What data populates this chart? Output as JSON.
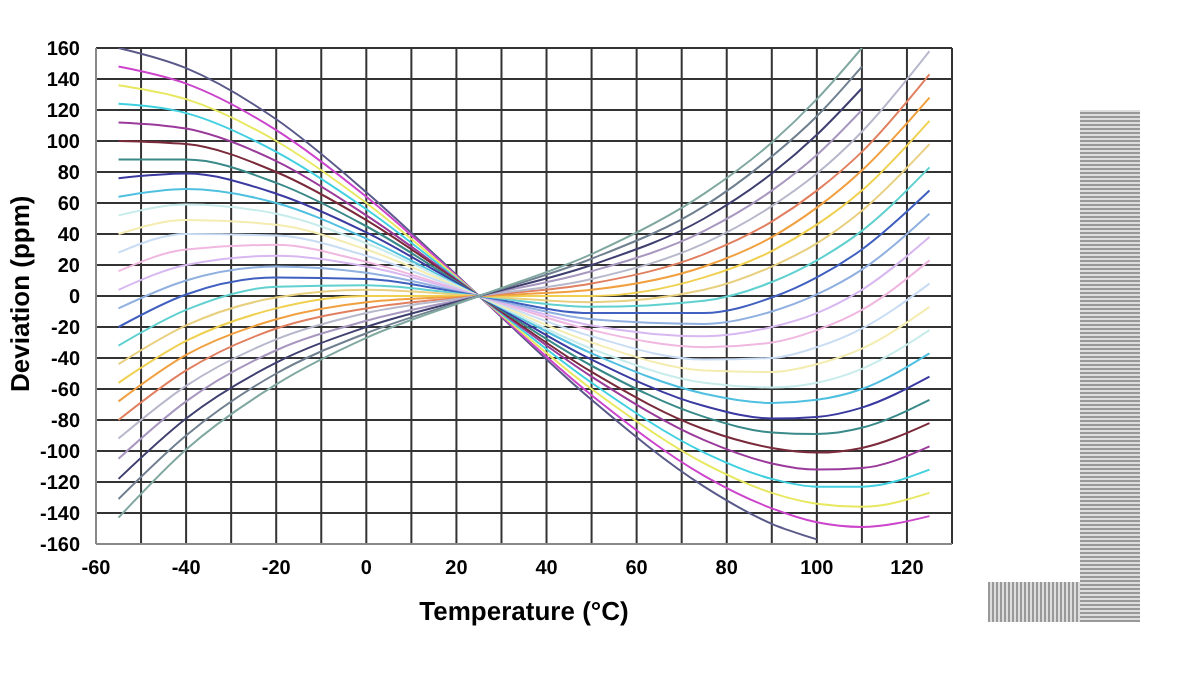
{
  "chart_data": {
    "type": "line",
    "xlabel": "Temperature (°C)",
    "ylabel": "Deviation (ppm)",
    "xlim": [
      -60,
      130
    ],
    "ylim": [
      -160,
      160
    ],
    "xticks": [
      -60,
      {
        "value": -50,
        "label": null
      },
      -40,
      {
        "value": -30,
        "label": null
      },
      -20,
      {
        "value": -10,
        "label": null
      },
      0,
      {
        "value": 10,
        "label": null
      },
      20,
      {
        "value": 30,
        "label": null
      },
      40,
      {
        "value": 50,
        "label": null
      },
      60,
      {
        "value": 70,
        "label": null
      },
      80,
      {
        "value": 90,
        "label": null
      },
      100,
      {
        "value": 110,
        "label": null
      },
      120,
      {
        "value": 130,
        "label": null
      }
    ],
    "yticks": [
      -160,
      -140,
      -120,
      -100,
      -80,
      -60,
      -40,
      -20,
      0,
      20,
      40,
      60,
      80,
      100,
      120,
      140,
      160
    ],
    "grid": true,
    "legend": false,
    "marker": "none",
    "line_style": "solid",
    "x": [
      -55,
      -40,
      -20,
      0,
      25,
      50,
      75,
      90,
      100,
      110,
      125
    ],
    "series": [
      {
        "color": "#5a5a8a",
        "values": [
          160,
          147,
          114,
          67,
          0,
          -67,
          -123,
          -147,
          -157,
          null,
          null
        ]
      },
      {
        "color": "#cc44cc",
        "values": [
          148,
          137,
          107,
          64,
          0,
          -64,
          -116,
          -137,
          -146,
          -149,
          -142
        ]
      },
      {
        "color": "#e8e860",
        "values": [
          136,
          127,
          100,
          60,
          0,
          -60,
          -108,
          -127,
          -134,
          -136,
          -127
        ]
      },
      {
        "color": "#40d0e0",
        "values": [
          124,
          118,
          93,
          56,
          0,
          -56,
          -101,
          -118,
          -123,
          -123,
          -112
        ]
      },
      {
        "color": "#9a3a9a",
        "values": [
          112,
          108,
          87,
          52,
          0,
          -52,
          -93,
          -108,
          -112,
          -111,
          -97
        ]
      },
      {
        "color": "#7a2a3a",
        "values": [
          100,
          98,
          80,
          49,
          0,
          -49,
          -86,
          -98,
          -101,
          -98,
          -82
        ]
      },
      {
        "color": "#3a8a8a",
        "values": [
          88,
          88,
          73,
          45,
          0,
          -45,
          -78,
          -88,
          -89,
          -85,
          -67
        ]
      },
      {
        "color": "#3a3aa0",
        "values": [
          76,
          79,
          66,
          41,
          0,
          -41,
          -71,
          -79,
          -78,
          -72,
          -52
        ]
      },
      {
        "color": "#50c0e0",
        "values": [
          64,
          69,
          60,
          37,
          0,
          -37,
          -63,
          -69,
          -67,
          -60,
          -37
        ]
      },
      {
        "color": "#c8ecec",
        "values": [
          52,
          59,
          53,
          34,
          0,
          -34,
          -56,
          -59,
          -56,
          -47,
          -22
        ]
      },
      {
        "color": "#f4ecb0",
        "values": [
          40,
          49,
          46,
          30,
          0,
          -30,
          -48,
          -49,
          -44,
          -34,
          -7
        ]
      },
      {
        "color": "#c8dcf4",
        "values": [
          28,
          40,
          39,
          26,
          0,
          -26,
          -41,
          -40,
          -33,
          -21,
          8
        ]
      },
      {
        "color": "#f0b8e0",
        "values": [
          16,
          30,
          33,
          22,
          0,
          -22,
          -33,
          -30,
          -22,
          -9,
          23
        ]
      },
      {
        "color": "#d8b8f0",
        "values": [
          4,
          20,
          26,
          19,
          0,
          -19,
          -26,
          -20,
          -11,
          4,
          38
        ]
      },
      {
        "color": "#90b0e0",
        "values": [
          -8,
          10,
          19,
          15,
          0,
          -15,
          -18,
          -10,
          1,
          17,
          53
        ]
      },
      {
        "color": "#4060c0",
        "values": [
          -20,
          1,
          12,
          11,
          0,
          -11,
          -11,
          -1,
          12,
          30,
          68
        ]
      },
      {
        "color": "#60d0d0",
        "values": [
          -32,
          -9,
          6,
          7,
          0,
          -7,
          -3,
          9,
          23,
          42,
          83
        ]
      },
      {
        "color": "#e8d080",
        "values": [
          -44,
          -19,
          -1,
          4,
          0,
          -4,
          4,
          19,
          34,
          55,
          98
        ]
      },
      {
        "color": "#f0d050",
        "values": [
          -56,
          -29,
          -8,
          0,
          0,
          0,
          12,
          29,
          46,
          68,
          113
        ]
      },
      {
        "color": "#f0a040",
        "values": [
          -68,
          -38,
          -15,
          -4,
          0,
          4,
          19,
          38,
          57,
          81,
          128
        ]
      },
      {
        "color": "#e08060",
        "values": [
          -80,
          -48,
          -21,
          -8,
          0,
          8,
          27,
          48,
          68,
          93,
          143
        ]
      },
      {
        "color": "#b8b8cc",
        "values": [
          -92,
          -58,
          -28,
          -11,
          0,
          11,
          34,
          58,
          79,
          106,
          158
        ]
      },
      {
        "color": "#a898c0",
        "values": [
          -105,
          -68,
          -35,
          -16,
          0,
          16,
          42,
          68,
          91,
          120,
          null
        ]
      },
      {
        "color": "#404070",
        "values": [
          -118,
          -79,
          -43,
          -20,
          0,
          20,
          50,
          79,
          104,
          134,
          null
        ]
      },
      {
        "color": "#708090",
        "values": [
          -131,
          -90,
          -50,
          -24,
          0,
          24,
          58,
          90,
          116,
          148,
          null
        ]
      },
      {
        "color": "#80a8a0",
        "values": [
          -143,
          -99,
          -57,
          -27,
          0,
          27,
          66,
          99,
          127,
          160,
          null
        ]
      }
    ]
  }
}
